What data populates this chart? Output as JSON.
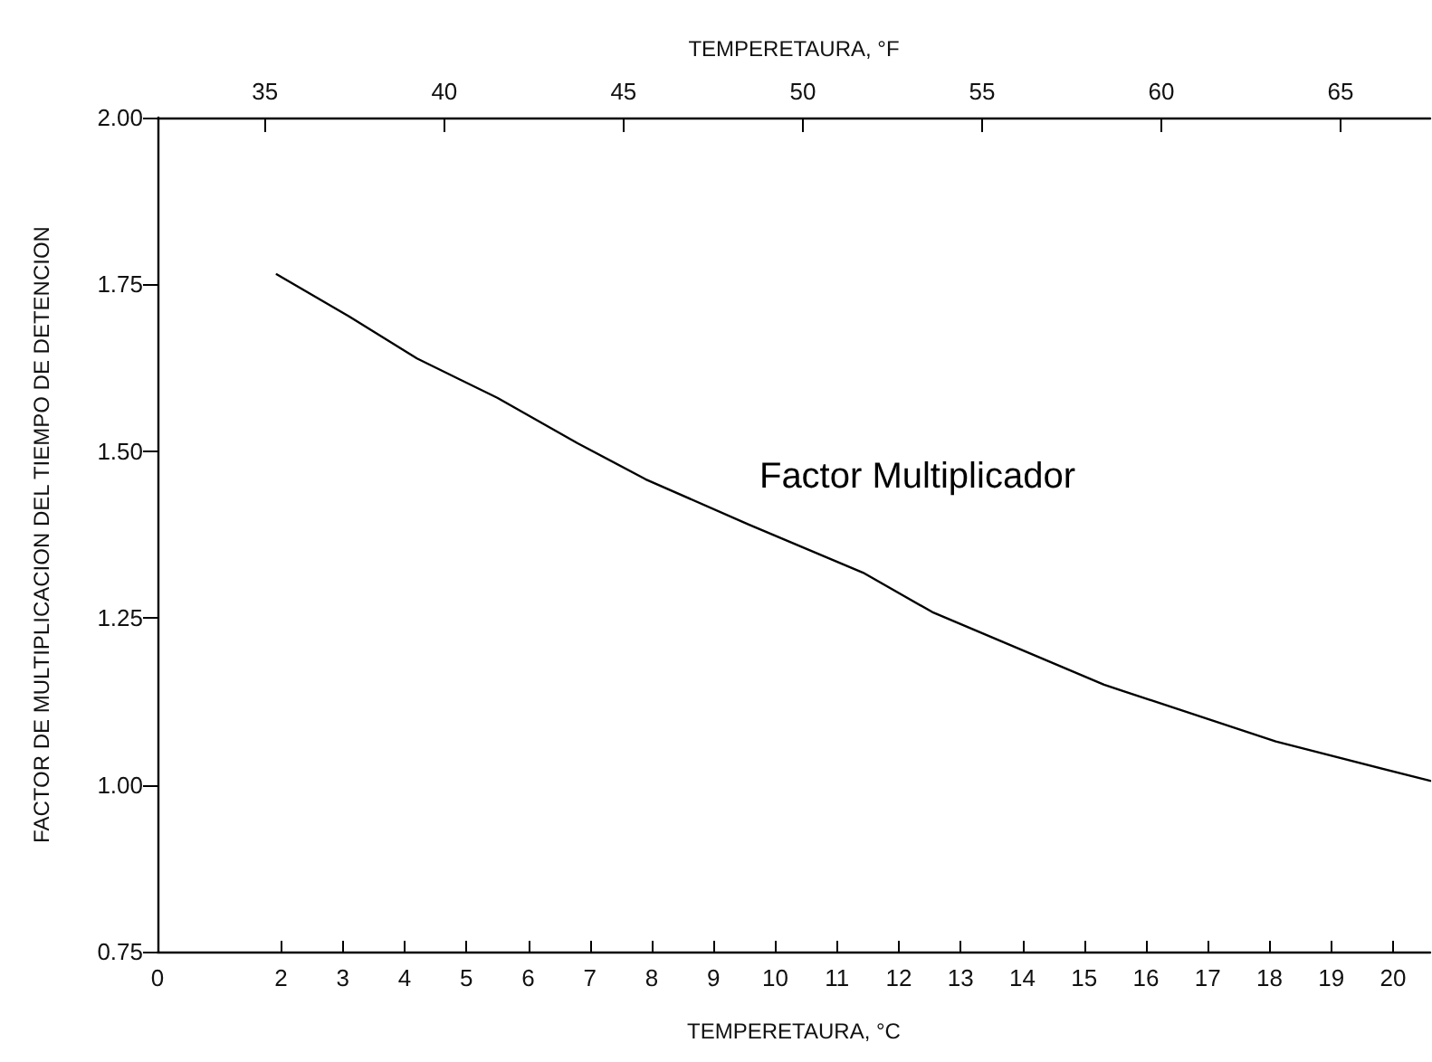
{
  "chart_data": {
    "type": "line",
    "xlabel": "TEMPERETAURA, °C",
    "ylabel": "FACTOR DE MULTIPLICACION DEL TIEMPO DE DETENCION",
    "x2label": "TEMPERETAURA, °F",
    "xlim": [
      0,
      20.6
    ],
    "xticks": [
      0,
      2,
      3,
      4,
      5,
      6,
      7,
      8,
      9,
      10,
      11,
      12,
      13,
      14,
      15,
      16,
      17,
      18,
      19,
      20
    ],
    "x2lim": [
      32,
      67.5
    ],
    "x2ticks": [
      35,
      40,
      45,
      50,
      55,
      60,
      65
    ],
    "ylim": [
      0.75,
      2.0
    ],
    "yticks": [
      {
        "value": 0.75,
        "label": "0.75"
      },
      {
        "value": 1.0,
        "label": "1.00"
      },
      {
        "value": 1.25,
        "label": "1.25"
      },
      {
        "value": 1.5,
        "label": "1.50"
      },
      {
        "value": 1.75,
        "label": "1.75"
      },
      {
        "value": 2.0,
        "label": "2.00"
      }
    ],
    "grid": false,
    "legend": false,
    "marker": "none",
    "line_style": "solid",
    "series": [
      {
        "name": "Factor Multiplicador",
        "color": "#000000",
        "x": [
          1.93,
          3.1,
          4.2,
          5.5,
          6.8,
          7.9,
          9.57,
          11.42,
          12.54,
          15.32,
          18.1,
          20.6
        ],
        "values": [
          1.765,
          1.702,
          1.639,
          1.58,
          1.512,
          1.458,
          1.39,
          1.318,
          1.259,
          1.15,
          1.065,
          1.006
        ]
      }
    ]
  }
}
